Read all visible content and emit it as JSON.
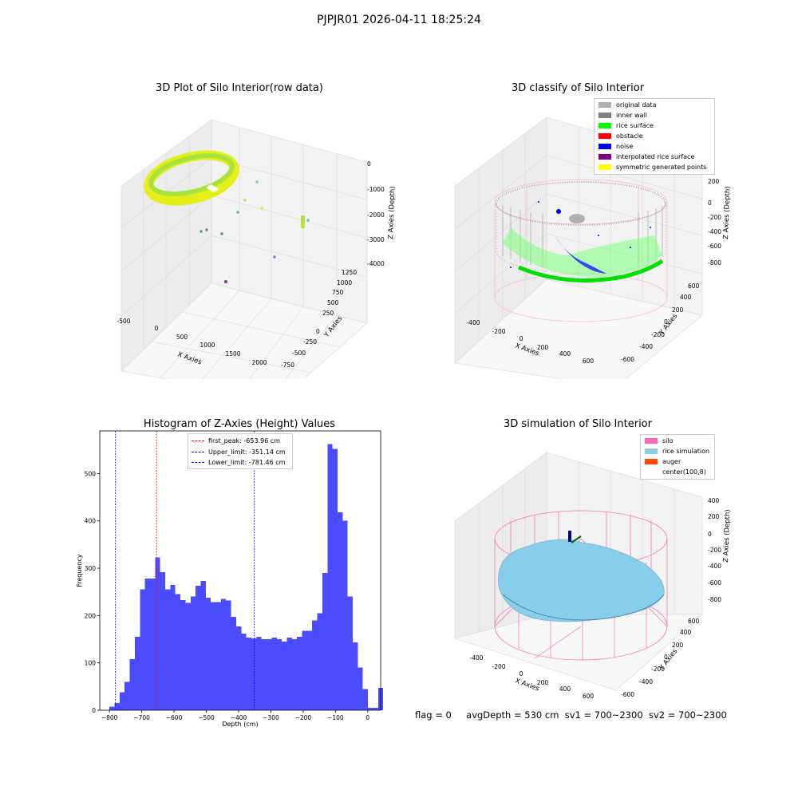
{
  "figure": {
    "suptitle": "PJPJR01 2026-04-11 18:25:24",
    "status_line": {
      "flag": "flag = 0",
      "avg_depth": "avgDepth = 530 cm",
      "sv1": "sv1 = 700~2300",
      "sv2": "sv2 = 700~2300"
    }
  },
  "panel1": {
    "title": "3D Plot of Silo Interior(row data)",
    "xlabel": "X Axies",
    "ylabel": "Y Axies",
    "zlabel": "Z Axies (Depth)",
    "x_ticks": [
      "-500",
      "0",
      "500",
      "1000",
      "1500",
      "2000"
    ],
    "y_ticks": [
      "-750",
      "-500",
      "-250",
      "0",
      "250",
      "500",
      "750",
      "1000",
      "1250"
    ],
    "z_ticks": [
      "0",
      "-1000",
      "-2000",
      "-3000",
      "-4000"
    ]
  },
  "panel2": {
    "title": "3D classify of Silo Interior",
    "xlabel": "X Axies",
    "ylabel": "Y Axies",
    "zlabel": "Z Axies (Depth)",
    "x_ticks": [
      "-400",
      "-200",
      "0",
      "200",
      "400",
      "600"
    ],
    "y_ticks": [
      "-600",
      "-400",
      "-200",
      "0",
      "200",
      "400",
      "600"
    ],
    "z_ticks": [
      "200",
      "0",
      "-200",
      "-400",
      "-600",
      "-800"
    ],
    "legend": [
      {
        "label": "original data",
        "color": "#b0b0b0"
      },
      {
        "label": "inner wall",
        "color": "#808080"
      },
      {
        "label": "rice surface",
        "color": "#00ff00"
      },
      {
        "label": "obstacle",
        "color": "#ff0000"
      },
      {
        "label": "noise",
        "color": "#0000ff"
      },
      {
        "label": "interpolated rice surface",
        "color": "#800080"
      },
      {
        "label": "symmetric generated points",
        "color": "#ffff00"
      }
    ]
  },
  "panel4": {
    "title": "3D simulation of Silo Interior",
    "xlabel": "X Axies",
    "ylabel": "Y Axies",
    "zlabel": "Z Axies (Depth)",
    "x_ticks": [
      "-400",
      "-200",
      "0",
      "200",
      "400",
      "600"
    ],
    "y_ticks": [
      "-600",
      "-400",
      "-200",
      "0",
      "200",
      "400",
      "600"
    ],
    "z_ticks": [
      "400",
      "200",
      "0",
      "-200",
      "-400",
      "-600",
      "-800"
    ],
    "legend": [
      {
        "label": "silo",
        "color": "#ff69b4"
      },
      {
        "label": "rice simulation",
        "color": "#87ceeb"
      },
      {
        "label": "auger",
        "color": "#ff4500"
      },
      {
        "label": "center(100,8)",
        "color": ""
      }
    ]
  },
  "chart_data": {
    "type": "bar",
    "title": "Histogram of Z-Axies (Height) Values",
    "xlabel": "Depth (cm)",
    "ylabel": "Frequency",
    "bar_color": "#4b4bff",
    "xlim": [
      -830,
      40
    ],
    "ylim": [
      0,
      590
    ],
    "x_ticks": [
      -800,
      -700,
      -600,
      -500,
      -400,
      -300,
      -200,
      -100,
      0
    ],
    "y_ticks": [
      0,
      100,
      200,
      300,
      400,
      500
    ],
    "bin_start": -800,
    "bin_width": 15.7,
    "values": [
      8,
      15,
      38,
      60,
      108,
      155,
      255,
      278,
      278,
      323,
      292,
      255,
      265,
      245,
      233,
      227,
      240,
      263,
      273,
      238,
      228,
      228,
      235,
      232,
      197,
      177,
      162,
      153,
      152,
      155,
      150,
      150,
      153,
      150,
      145,
      153,
      150,
      155,
      168,
      168,
      190,
      205,
      290,
      562,
      552,
      418,
      400,
      240,
      143,
      90,
      45,
      5,
      5,
      47
    ],
    "lines": [
      {
        "label": "first_peak: -653.96 cm",
        "x": -653.96,
        "color": "#ff0000"
      },
      {
        "label": "Upper_limit: -351.14 cm",
        "x": -351.14,
        "color": "#0000ff"
      },
      {
        "label": "Lower_limit: -781.46 cm",
        "x": -781.46,
        "color": "#0000ff"
      }
    ],
    "grid": false,
    "legend_position": "top-center"
  }
}
